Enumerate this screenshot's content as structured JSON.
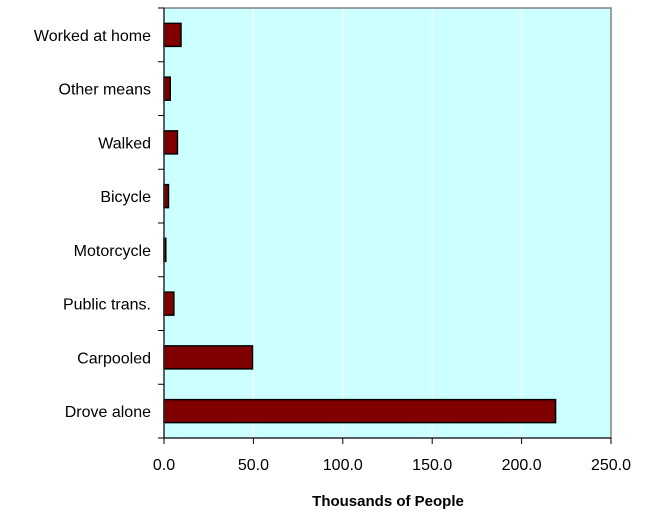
{
  "chart_data": {
    "type": "bar",
    "orientation": "horizontal",
    "categories": [
      "Worked at home",
      "Other means",
      "Walked",
      "Bicycle",
      "Motorcycle",
      "Public trans.",
      "Carpooled",
      "Drove alone"
    ],
    "values": [
      9.5,
      3.5,
      7.5,
      2.5,
      1.0,
      5.5,
      49.5,
      219.0
    ],
    "xlabel": "Thousands of People",
    "ylabel": "",
    "xlim": [
      0,
      250
    ],
    "xticks": [
      "0.0",
      "50.0",
      "100.0",
      "150.0",
      "200.0",
      "250.0"
    ],
    "grid": "vertical",
    "legend": "none",
    "colors": {
      "plot_background": "#ccffff",
      "bar_fill": "#800000",
      "bar_stroke": "#000000",
      "gridline": "#ffffff",
      "plot_border": "#808080"
    }
  }
}
